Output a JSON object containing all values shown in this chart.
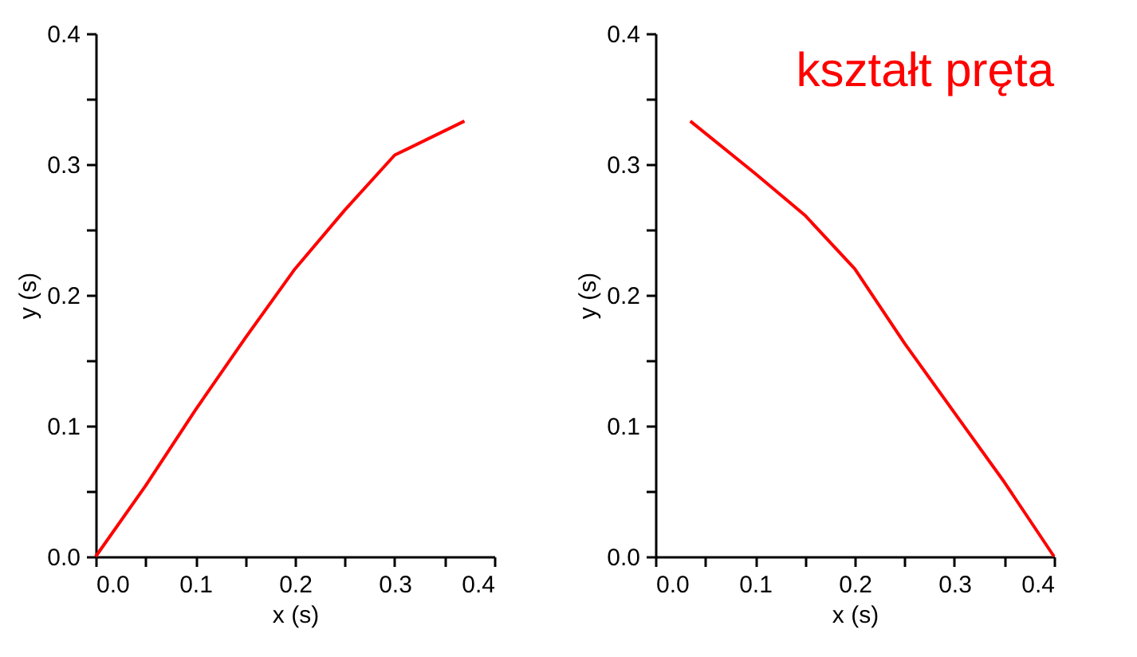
{
  "chart_data": [
    {
      "type": "line",
      "xlabel": "x (s)",
      "ylabel": "y (s)",
      "x": [
        0,
        0.05,
        0.1,
        0.15,
        0.2,
        0.25,
        0.3,
        0.37
      ],
      "series": [
        {
          "color": "#ff0000",
          "values": [
            0,
            0.054,
            0.112,
            0.167,
            0.22,
            0.265,
            0.307,
            0.333
          ]
        }
      ],
      "xlim": [
        0,
        0.4
      ],
      "ylim": [
        0,
        0.4
      ],
      "xticks": [
        {
          "value": 0,
          "label": "0.0"
        },
        {
          "value": 0.05,
          "label": null
        },
        {
          "value": 0.1,
          "label": "0.1"
        },
        {
          "value": 0.15,
          "label": null
        },
        {
          "value": 0.2,
          "label": "0.2"
        },
        {
          "value": 0.25,
          "label": null
        },
        {
          "value": 0.3,
          "label": "0.3"
        },
        {
          "value": 0.35,
          "label": null
        },
        {
          "value": 0.4,
          "label": "0.4"
        }
      ],
      "yticks": [
        {
          "value": 0,
          "label": "0.0"
        },
        {
          "value": 0.05,
          "label": null
        },
        {
          "value": 0.1,
          "label": "0.1"
        },
        {
          "value": 0.15,
          "label": null
        },
        {
          "value": 0.2,
          "label": "0.2"
        },
        {
          "value": 0.25,
          "label": null
        },
        {
          "value": 0.3,
          "label": "0.3"
        },
        {
          "value": 0.35,
          "label": null
        },
        {
          "value": 0.4,
          "label": "0.4"
        }
      ]
    },
    {
      "type": "line",
      "xlabel": "x (s)",
      "ylabel": "y (s)",
      "x": [
        0.035,
        0.1,
        0.15,
        0.2,
        0.25,
        0.3,
        0.35,
        0.4
      ],
      "series": [
        {
          "color": "#ff0000",
          "values": [
            0.333,
            0.293,
            0.261,
            0.22,
            0.163,
            0.11,
            0.057,
            0
          ]
        }
      ],
      "annotations": [
        "kształt pręta"
      ],
      "xlim": [
        0,
        0.4
      ],
      "ylim": [
        0,
        0.4
      ],
      "xticks": [
        {
          "value": 0,
          "label": "0.0"
        },
        {
          "value": 0.05,
          "label": null
        },
        {
          "value": 0.1,
          "label": "0.1"
        },
        {
          "value": 0.15,
          "label": null
        },
        {
          "value": 0.2,
          "label": "0.2"
        },
        {
          "value": 0.25,
          "label": null
        },
        {
          "value": 0.3,
          "label": "0.3"
        },
        {
          "value": 0.35,
          "label": null
        },
        {
          "value": 0.4,
          "label": "0.4"
        }
      ],
      "yticks": [
        {
          "value": 0,
          "label": "0.0"
        },
        {
          "value": 0.05,
          "label": null
        },
        {
          "value": 0.1,
          "label": "0.1"
        },
        {
          "value": 0.15,
          "label": null
        },
        {
          "value": 0.2,
          "label": "0.2"
        },
        {
          "value": 0.25,
          "label": null
        },
        {
          "value": 0.3,
          "label": "0.3"
        },
        {
          "value": 0.35,
          "label": null
        },
        {
          "value": 0.4,
          "label": "0.4"
        }
      ]
    }
  ]
}
